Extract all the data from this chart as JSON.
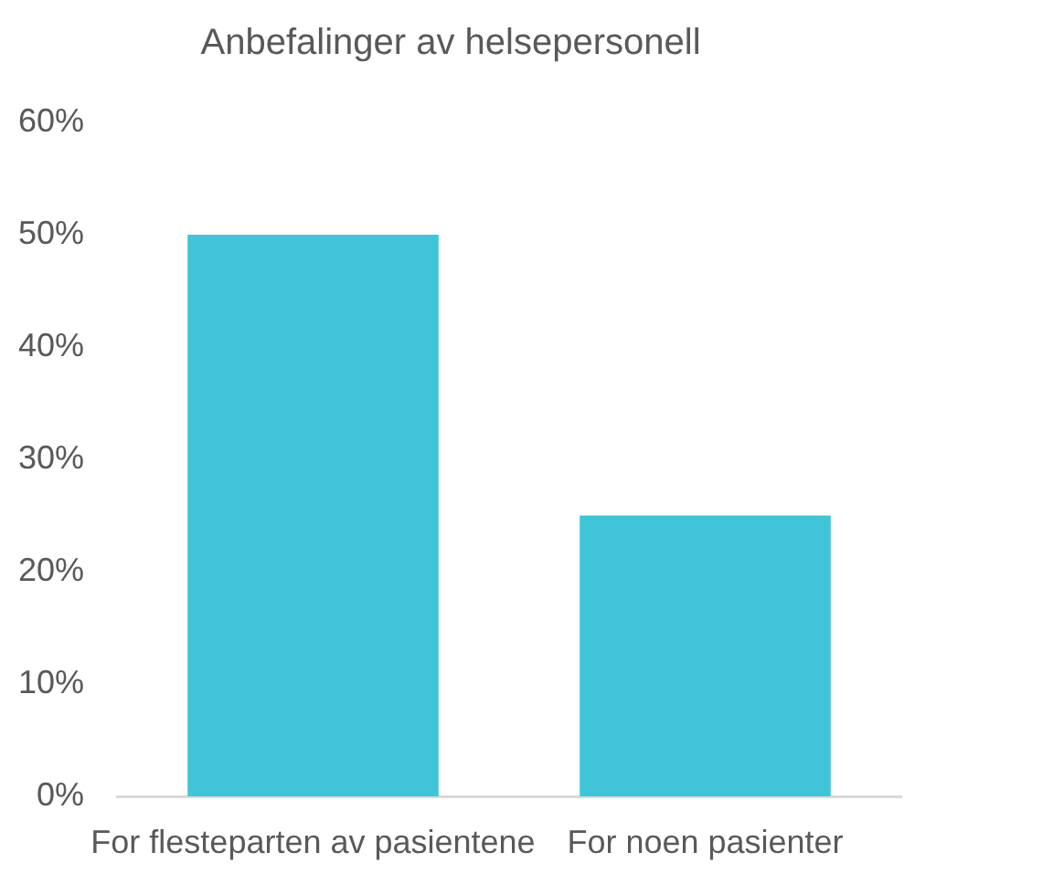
{
  "chart_data": {
    "type": "bar",
    "title": "Anbefalinger av helsepersonell",
    "categories": [
      "For flesteparten av pasientene",
      "For noen pasienter"
    ],
    "values": [
      50,
      25
    ],
    "color": "#40c4d8",
    "ylim": [
      0,
      60
    ],
    "yticks": [
      {
        "value": 0,
        "label": "0%"
      },
      {
        "value": 10,
        "label": "10%"
      },
      {
        "value": 20,
        "label": "20%"
      },
      {
        "value": 30,
        "label": "30%"
      },
      {
        "value": 40,
        "label": "40%"
      },
      {
        "value": 50,
        "label": "50%"
      },
      {
        "value": 60,
        "label": "60%"
      }
    ]
  }
}
